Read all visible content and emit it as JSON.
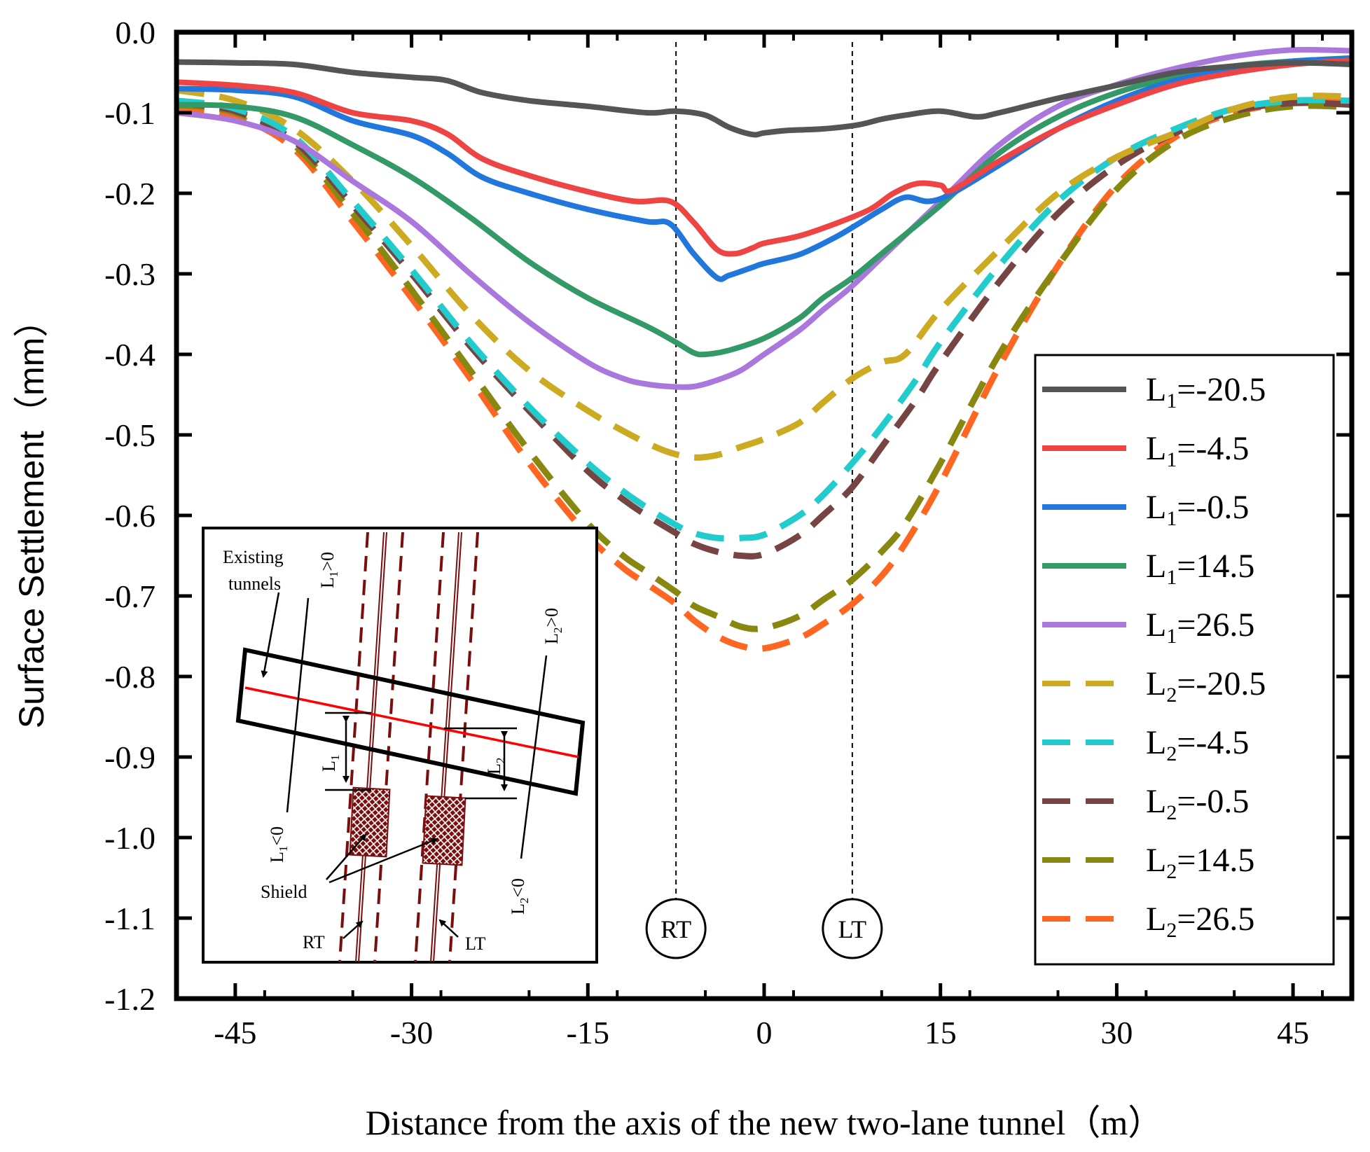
{
  "chart_data": {
    "type": "line",
    "title": "",
    "xlabel": "Distance from the axis of the new two-lane tunnel（m）",
    "ylabel": "Surface Settlement（mm）",
    "xlim": [
      -50,
      50
    ],
    "ylim": [
      -1.2,
      0.0
    ],
    "xticks": [
      -45,
      -30,
      -15,
      0,
      15,
      30,
      45
    ],
    "xtick_labels": [
      "-45",
      "-30",
      "-15",
      "0",
      "15",
      "30",
      "45"
    ],
    "yticks": [
      0.0,
      -0.1,
      -0.2,
      -0.3,
      -0.4,
      -0.5,
      -0.6,
      -0.7,
      -0.8,
      -0.9,
      -1.0,
      -1.1,
      -1.2
    ],
    "ytick_labels": [
      "0.0",
      "-0.1",
      "-0.2",
      "-0.3",
      "-0.4",
      "-0.5",
      "-0.6",
      "-0.7",
      "-0.8",
      "-0.9",
      "-1.0",
      "-1.1",
      "-1.2"
    ],
    "legend_position": "right",
    "reference_lines": [
      {
        "x": -7.5,
        "label": "RT"
      },
      {
        "x": 7.5,
        "label": "LT"
      }
    ],
    "series": [
      {
        "name": "L1=-20.5",
        "prefix": "L",
        "sub": "1",
        "value": "=-20.5",
        "color": "#555555",
        "style": "solid",
        "x": [
          -50,
          -45,
          -40,
          -35,
          -30,
          -27,
          -24,
          -20,
          -15,
          -10,
          -7.5,
          -5,
          -3,
          -1,
          0,
          2,
          5,
          8,
          10,
          12,
          15,
          18,
          20,
          25,
          30,
          35,
          40,
          45,
          50
        ],
        "y": [
          -0.037,
          -0.038,
          -0.04,
          -0.05,
          -0.056,
          -0.06,
          -0.075,
          -0.085,
          -0.092,
          -0.1,
          -0.098,
          -0.103,
          -0.118,
          -0.127,
          -0.125,
          -0.122,
          -0.12,
          -0.115,
          -0.108,
          -0.103,
          -0.098,
          -0.105,
          -0.1,
          -0.082,
          -0.066,
          -0.05,
          -0.042,
          -0.038,
          -0.04
        ]
      },
      {
        "name": "L1=-4.5",
        "prefix": "L",
        "sub": "1",
        "value": "=-4.5",
        "color": "#ee4444",
        "style": "solid",
        "x": [
          -50,
          -45,
          -40,
          -35,
          -30,
          -27,
          -24,
          -20,
          -15,
          -11,
          -8,
          -6,
          -4,
          -2.5,
          -1,
          0,
          3,
          6,
          9,
          11,
          13,
          15,
          16,
          20,
          25,
          30,
          35,
          40,
          45,
          50
        ],
        "y": [
          -0.062,
          -0.066,
          -0.075,
          -0.1,
          -0.11,
          -0.126,
          -0.157,
          -0.178,
          -0.198,
          -0.21,
          -0.21,
          -0.236,
          -0.27,
          -0.275,
          -0.268,
          -0.262,
          -0.253,
          -0.238,
          -0.22,
          -0.2,
          -0.188,
          -0.19,
          -0.196,
          -0.16,
          -0.12,
          -0.09,
          -0.065,
          -0.05,
          -0.04,
          -0.035
        ]
      },
      {
        "name": "L1=-0.5",
        "prefix": "L",
        "sub": "1",
        "value": "=-0.5",
        "color": "#2277dd",
        "style": "solid",
        "x": [
          -50,
          -45,
          -40,
          -35,
          -30,
          -27,
          -24,
          -20,
          -15,
          -10,
          -8,
          -6,
          -4,
          -3,
          -1,
          0,
          3,
          6,
          8,
          10,
          12,
          14,
          16,
          20,
          25,
          30,
          35,
          40,
          45,
          50
        ],
        "y": [
          -0.07,
          -0.072,
          -0.08,
          -0.11,
          -0.128,
          -0.15,
          -0.18,
          -0.2,
          -0.22,
          -0.235,
          -0.238,
          -0.275,
          -0.305,
          -0.302,
          -0.292,
          -0.287,
          -0.276,
          -0.255,
          -0.238,
          -0.22,
          -0.205,
          -0.21,
          -0.2,
          -0.165,
          -0.12,
          -0.085,
          -0.06,
          -0.045,
          -0.036,
          -0.033
        ]
      },
      {
        "name": "L1=14.5",
        "prefix": "L",
        "sub": "1",
        "value": "=14.5",
        "color": "#339966",
        "style": "solid",
        "x": [
          -50,
          -45,
          -40,
          -35,
          -30,
          -25,
          -20,
          -15,
          -10,
          -7.5,
          -6,
          -5,
          -3,
          0,
          3,
          5,
          7.5,
          10,
          15,
          20,
          25,
          30,
          35,
          40,
          45,
          50
        ],
        "y": [
          -0.09,
          -0.092,
          -0.105,
          -0.14,
          -0.18,
          -0.23,
          -0.285,
          -0.33,
          -0.365,
          -0.385,
          -0.398,
          -0.4,
          -0.395,
          -0.38,
          -0.355,
          -0.33,
          -0.305,
          -0.275,
          -0.215,
          -0.15,
          -0.105,
          -0.075,
          -0.055,
          -0.042,
          -0.036,
          -0.032
        ]
      },
      {
        "name": "L1=26.5",
        "prefix": "L",
        "sub": "1",
        "value": "=26.5",
        "color": "#aa77dd",
        "style": "solid",
        "x": [
          -50,
          -45,
          -40,
          -35,
          -30,
          -25,
          -20,
          -15,
          -12,
          -10,
          -8,
          -6,
          -4,
          -2,
          0,
          3,
          5,
          7.5,
          10,
          15,
          20,
          25,
          30,
          35,
          40,
          45,
          50
        ],
        "y": [
          -0.1,
          -0.11,
          -0.135,
          -0.185,
          -0.235,
          -0.3,
          -0.36,
          -0.41,
          -0.43,
          -0.437,
          -0.44,
          -0.44,
          -0.432,
          -0.42,
          -0.4,
          -0.37,
          -0.345,
          -0.315,
          -0.28,
          -0.21,
          -0.14,
          -0.092,
          -0.065,
          -0.045,
          -0.03,
          -0.022,
          -0.023
        ]
      },
      {
        "name": "L2=-20.5",
        "prefix": "L",
        "sub": "2",
        "value": "=-20.5",
        "color": "#ccaa22",
        "style": "dashed",
        "x": [
          -50,
          -45,
          -40,
          -35,
          -30,
          -25,
          -20,
          -15,
          -12,
          -10,
          -8,
          -6,
          -4,
          -2,
          0,
          3,
          5,
          7.5,
          10,
          12,
          15,
          20,
          25,
          30,
          35,
          40,
          45,
          50
        ],
        "y": [
          -0.072,
          -0.085,
          -0.12,
          -0.185,
          -0.265,
          -0.35,
          -0.42,
          -0.47,
          -0.495,
          -0.51,
          -0.522,
          -0.528,
          -0.525,
          -0.515,
          -0.505,
          -0.485,
          -0.46,
          -0.43,
          -0.41,
          -0.4,
          -0.345,
          -0.27,
          -0.2,
          -0.155,
          -0.125,
          -0.095,
          -0.08,
          -0.08
        ]
      },
      {
        "name": "L2=-4.5",
        "prefix": "L",
        "sub": "2",
        "value": "=-4.5",
        "color": "#22cccc",
        "style": "dashed",
        "x": [
          -50,
          -45,
          -40,
          -35,
          -30,
          -25,
          -20,
          -15,
          -12,
          -10,
          -7.5,
          -6,
          -4,
          -2,
          0,
          3,
          5,
          7.5,
          10,
          13,
          15,
          20,
          25,
          30,
          35,
          40,
          45,
          50
        ],
        "y": [
          -0.085,
          -0.095,
          -0.13,
          -0.21,
          -0.295,
          -0.385,
          -0.465,
          -0.535,
          -0.57,
          -0.59,
          -0.612,
          -0.622,
          -0.628,
          -0.628,
          -0.624,
          -0.6,
          -0.575,
          -0.535,
          -0.49,
          -0.43,
          -0.385,
          -0.29,
          -0.21,
          -0.155,
          -0.12,
          -0.095,
          -0.085,
          -0.085
        ]
      },
      {
        "name": "L2=-0.5",
        "prefix": "L",
        "sub": "2",
        "value": "=-0.5",
        "color": "#774444",
        "style": "dashed",
        "x": [
          -50,
          -45,
          -40,
          -35,
          -30,
          -25,
          -20,
          -15,
          -12,
          -10,
          -7.5,
          -6,
          -4,
          -2,
          0,
          3,
          5,
          7.5,
          10,
          13,
          15,
          20,
          25,
          30,
          35,
          40,
          45,
          50
        ],
        "y": [
          -0.088,
          -0.098,
          -0.135,
          -0.215,
          -0.3,
          -0.39,
          -0.47,
          -0.545,
          -0.58,
          -0.6,
          -0.622,
          -0.635,
          -0.645,
          -0.65,
          -0.648,
          -0.625,
          -0.6,
          -0.565,
          -0.515,
          -0.455,
          -0.41,
          -0.31,
          -0.225,
          -0.165,
          -0.125,
          -0.098,
          -0.088,
          -0.09
        ]
      },
      {
        "name": "L2=14.5",
        "prefix": "L",
        "sub": "2",
        "value": "=14.5",
        "color": "#888811",
        "style": "dashed",
        "x": [
          -50,
          -45,
          -40,
          -35,
          -30,
          -25,
          -20,
          -15,
          -12,
          -10,
          -7.5,
          -6,
          -4,
          -2,
          0,
          3,
          5,
          7.5,
          10,
          12,
          15,
          20,
          25,
          30,
          35,
          40,
          45,
          50
        ],
        "y": [
          -0.09,
          -0.1,
          -0.14,
          -0.225,
          -0.32,
          -0.42,
          -0.52,
          -0.61,
          -0.65,
          -0.67,
          -0.695,
          -0.712,
          -0.725,
          -0.738,
          -0.74,
          -0.725,
          -0.705,
          -0.68,
          -0.645,
          -0.61,
          -0.535,
          -0.4,
          -0.29,
          -0.195,
          -0.135,
          -0.105,
          -0.092,
          -0.093
        ]
      },
      {
        "name": "L2=26.5",
        "prefix": "L",
        "sub": "2",
        "value": "=26.5",
        "color": "#ff6622",
        "style": "dashed",
        "x": [
          -50,
          -45,
          -40,
          -35,
          -30,
          -25,
          -20,
          -15,
          -12,
          -10,
          -7.5,
          -6,
          -4,
          -2,
          0,
          3,
          5,
          7.5,
          10,
          12,
          15,
          20,
          25,
          30,
          35,
          40,
          45,
          50
        ],
        "y": [
          -0.093,
          -0.105,
          -0.145,
          -0.235,
          -0.33,
          -0.43,
          -0.535,
          -0.625,
          -0.665,
          -0.685,
          -0.71,
          -0.73,
          -0.75,
          -0.762,
          -0.765,
          -0.752,
          -0.735,
          -0.71,
          -0.675,
          -0.635,
          -0.56,
          -0.415,
          -0.29,
          -0.19,
          -0.13,
          -0.1,
          -0.088,
          -0.085
        ]
      }
    ]
  },
  "inset": {
    "existing_label_1": "Existing",
    "existing_label_2": "tunnels",
    "shield_label": "Shield",
    "rt_label": "RT",
    "lt_label": "LT",
    "l1_pos_main": "L",
    "l1_pos_sub": "1",
    "l1_pos_rest": ">0",
    "l2_pos_main": "L",
    "l2_pos_sub": "2",
    "l2_pos_rest": ">0",
    "l1_neg_main": "L",
    "l1_neg_sub": "1",
    "l1_neg_rest": "<0",
    "l2_neg_main": "L",
    "l2_neg_sub": "2",
    "l2_neg_rest": "<0",
    "l1_main": "L",
    "l1_sub": "1",
    "l2_main": "L",
    "l2_sub": "2"
  }
}
